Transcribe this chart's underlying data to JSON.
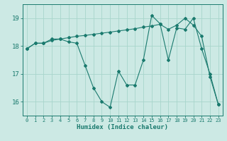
{
  "xlabel": "Humidex (Indice chaleur)",
  "background_color": "#cce9e4",
  "grid_color": "#a8d5cc",
  "line_color": "#1a7a6e",
  "ylim": [
    15.5,
    19.5
  ],
  "xlim": [
    -0.5,
    23.5
  ],
  "yticks": [
    16,
    17,
    18,
    19
  ],
  "xticks": [
    0,
    1,
    2,
    3,
    4,
    5,
    6,
    7,
    8,
    9,
    10,
    11,
    12,
    13,
    14,
    15,
    16,
    17,
    18,
    19,
    20,
    21,
    22,
    23
  ],
  "line1_x": [
    0,
    1,
    2,
    3,
    4,
    5,
    6,
    7,
    8,
    9,
    10,
    11,
    12,
    13,
    14,
    15,
    16,
    17,
    18,
    19,
    20,
    21,
    22,
    23
  ],
  "line1_y": [
    17.9,
    18.1,
    18.1,
    18.25,
    18.25,
    18.15,
    18.1,
    17.3,
    16.5,
    16.0,
    15.8,
    17.1,
    16.6,
    16.6,
    17.5,
    19.1,
    18.8,
    17.5,
    18.65,
    18.6,
    19.0,
    17.9,
    17.0,
    15.9
  ],
  "line2_x": [
    0,
    1,
    2,
    3,
    4,
    5,
    6,
    7,
    8,
    9,
    10,
    11,
    12,
    13,
    14,
    15,
    16,
    17,
    18,
    19,
    20,
    21,
    22,
    23
  ],
  "line2_y": [
    17.9,
    18.1,
    18.1,
    18.2,
    18.25,
    18.3,
    18.35,
    18.38,
    18.42,
    18.46,
    18.5,
    18.54,
    18.58,
    18.62,
    18.68,
    18.72,
    18.78,
    18.6,
    18.75,
    19.0,
    18.75,
    18.35,
    16.9,
    15.9
  ]
}
